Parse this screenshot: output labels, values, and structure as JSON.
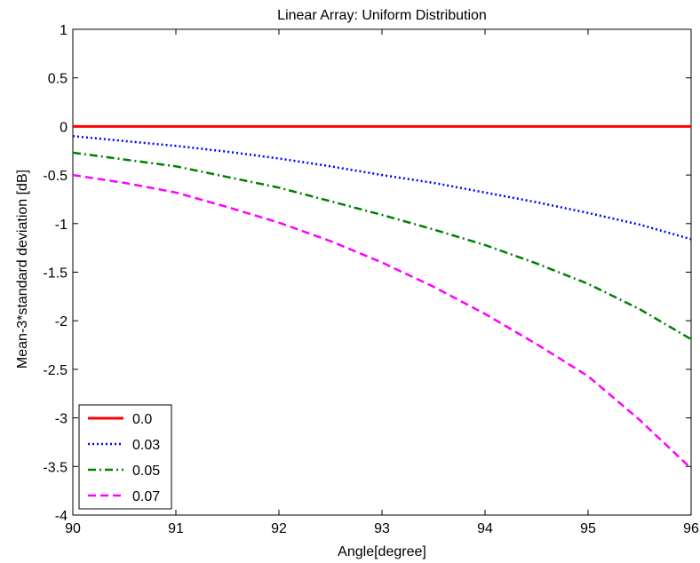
{
  "chart_data": {
    "type": "line",
    "title": "Linear Array: Uniform Distribution",
    "xlabel": "Angle[degree]",
    "ylabel": "Mean-3*standard deviation [dB]",
    "xlim": [
      90,
      96
    ],
    "ylim": [
      -4,
      1
    ],
    "xticks": [
      90,
      91,
      92,
      93,
      94,
      95,
      96
    ],
    "yticks": [
      1,
      0.5,
      0,
      -0.5,
      -1,
      -1.5,
      -2,
      -2.5,
      -3,
      -3.5,
      -4
    ],
    "xtick_labels": [
      "90",
      "91",
      "92",
      "93",
      "94",
      "95",
      "96"
    ],
    "ytick_labels": [
      "1",
      "0.5",
      "0",
      "-0.5",
      "-1",
      "-1.5",
      "-2",
      "-2.5",
      "-3",
      "-3.5",
      "-4"
    ],
    "grid": false,
    "legend_position": "bottom-left",
    "x": [
      90,
      90.5,
      91,
      91.5,
      92,
      92.5,
      93,
      93.5,
      94,
      94.5,
      95,
      95.5,
      96
    ],
    "series": [
      {
        "name": "0.0",
        "color": "#ff0000",
        "style": "solid",
        "values": [
          0,
          0,
          0,
          0,
          0,
          0,
          0,
          0,
          0,
          0,
          0,
          0,
          0
        ]
      },
      {
        "name": "0.03",
        "color": "#0000ff",
        "style": "dotted",
        "values": [
          -0.1,
          -0.15,
          -0.2,
          -0.26,
          -0.33,
          -0.41,
          -0.5,
          -0.58,
          -0.68,
          -0.78,
          -0.89,
          -1.01,
          -1.16
        ]
      },
      {
        "name": "0.05",
        "color": "#007f00",
        "style": "dashdot",
        "values": [
          -0.27,
          -0.34,
          -0.41,
          -0.52,
          -0.63,
          -0.77,
          -0.91,
          -1.06,
          -1.22,
          -1.41,
          -1.62,
          -1.88,
          -2.19
        ]
      },
      {
        "name": "0.07",
        "color": "#ff00ff",
        "style": "dashed",
        "values": [
          -0.5,
          -0.58,
          -0.68,
          -0.83,
          -0.99,
          -1.18,
          -1.4,
          -1.65,
          -1.93,
          -2.24,
          -2.57,
          -3.02,
          -3.52
        ]
      }
    ]
  }
}
